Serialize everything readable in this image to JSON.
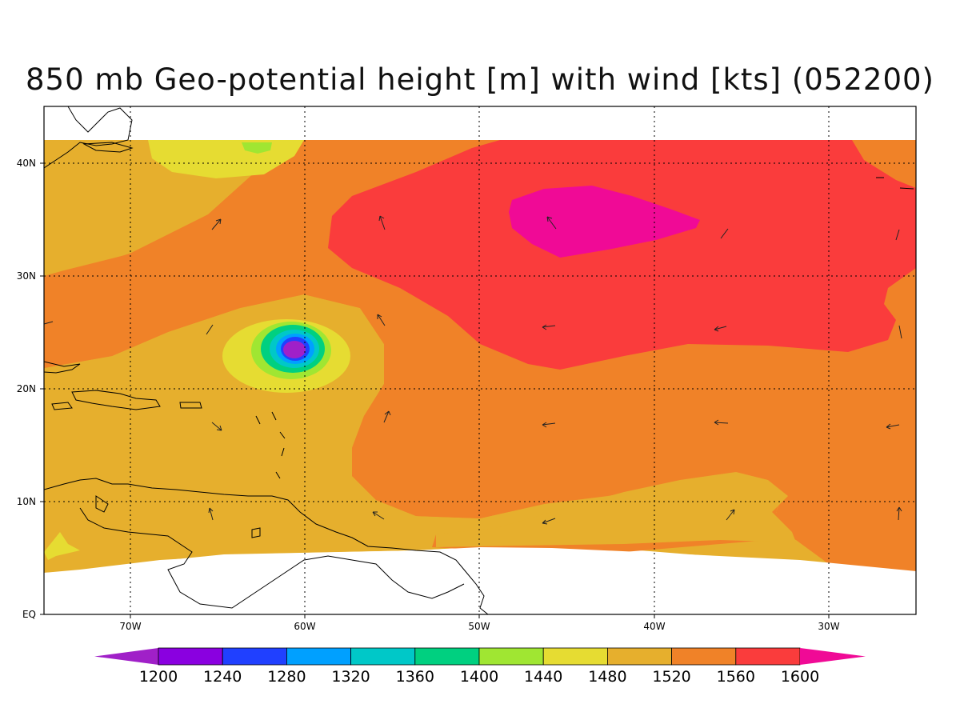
{
  "title": "850 mb Geo-potential height [m] with wind [kts] (052200)",
  "map": {
    "lat_labels": [
      "EQ",
      "10N",
      "20N",
      "30N",
      "40N"
    ],
    "lon_labels": [
      "70W",
      "60W",
      "50W",
      "40W",
      "30W"
    ]
  },
  "colorbar": {
    "labels": [
      "1200",
      "1240",
      "1280",
      "1320",
      "1360",
      "1400",
      "1440",
      "1480",
      "1520",
      "1560",
      "1600"
    ],
    "colors": [
      "#a020c8",
      "#8a00e0",
      "#2040ff",
      "#00a0ff",
      "#00c8c8",
      "#00d080",
      "#a0e632",
      "#e6dc32",
      "#e6af2d",
      "#f08228",
      "#fa3c3c",
      "#f00a96"
    ]
  },
  "colors": {
    "c1480": "#e6dc32",
    "c1520": "#e6af2d",
    "c1560": "#f08228",
    "c1600": "#fa3c3c",
    "c1640": "#f00a96",
    "c1440": "#a0e632"
  }
}
